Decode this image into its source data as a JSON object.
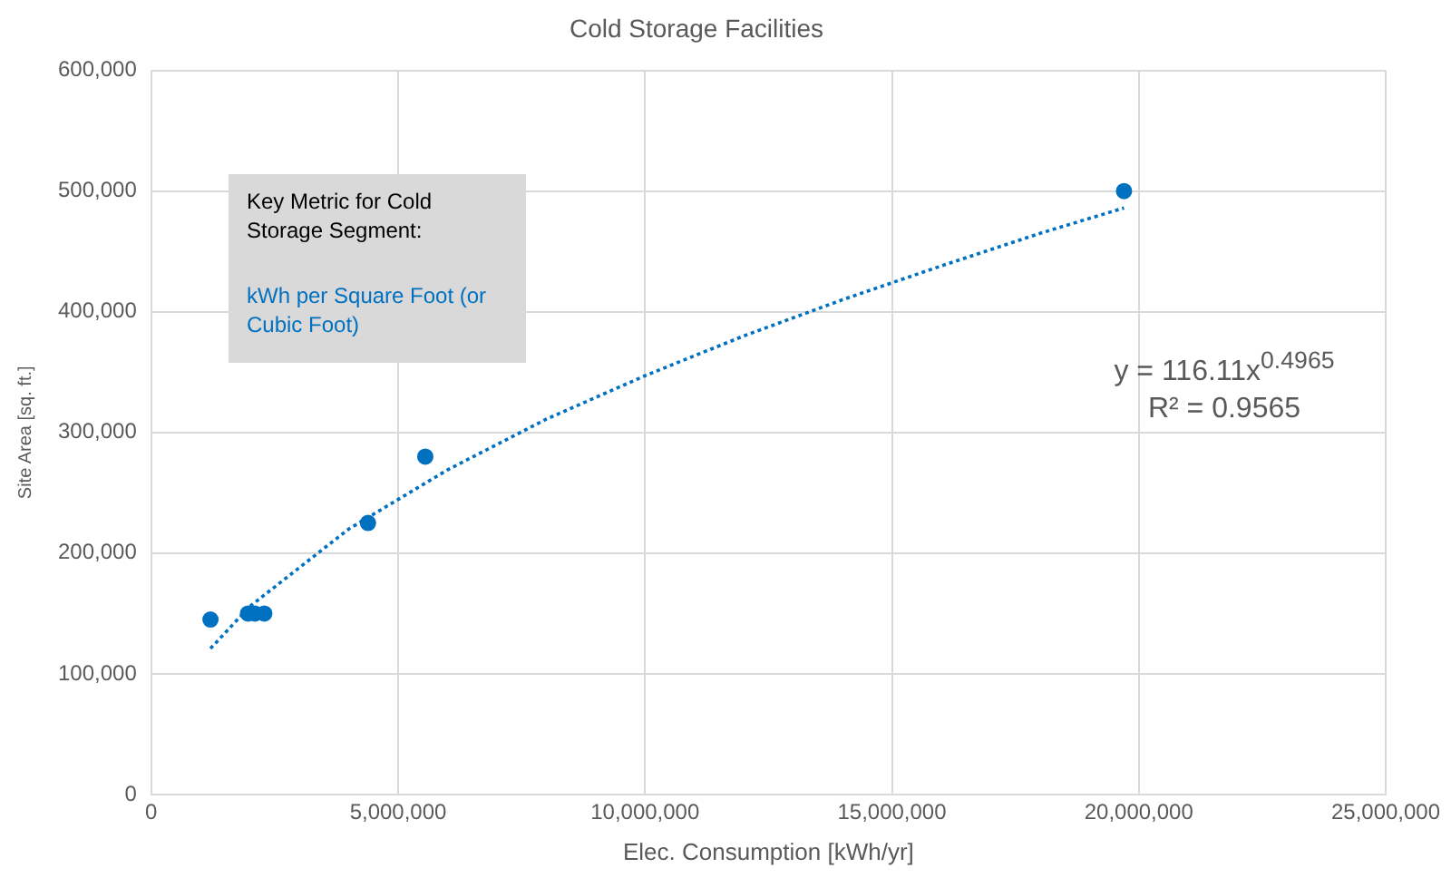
{
  "chart_data": {
    "type": "scatter",
    "title": "Cold Storage Facilities",
    "xlabel": "Elec. Consumption [kWh/yr]",
    "ylabel": "Site Area [sq. ft.]",
    "xlim": [
      0,
      25000000
    ],
    "xticks": [
      0,
      {
        "value": 5000000,
        "label": "5,000,000"
      },
      {
        "value": 10000000,
        "label": "10,000,000"
      },
      {
        "value": 15000000,
        "label": "15,000,000"
      },
      {
        "value": 20000000,
        "label": "20,000,000"
      },
      {
        "value": 25000000,
        "label": "25,000,000"
      }
    ],
    "ylim": [
      0,
      600000
    ],
    "yticks": [
      0,
      {
        "value": 100000,
        "label": "100,000"
      },
      {
        "value": 200000,
        "label": "200,000"
      },
      {
        "value": 300000,
        "label": "300,000"
      },
      {
        "value": 400000,
        "label": "400,000"
      },
      {
        "value": 500000,
        "label": "500,000"
      },
      {
        "value": 600000,
        "label": "600,000"
      }
    ],
    "grid": true,
    "legend": false,
    "marker": "circle",
    "series": [
      {
        "color": "#0070c0",
        "x": [
          1200000,
          1960000,
          2100000,
          2290000,
          4390000,
          5550000,
          19700000
        ],
        "values": [
          145000,
          150000,
          150000,
          150000,
          225000,
          280000,
          500000
        ]
      },
      {
        "type": "line",
        "color": "#0070c0",
        "marker": "none",
        "line_style": "dotted",
        "x": [
          1200000,
          2000000,
          4000000,
          6000000,
          8000000,
          10000000,
          12000000,
          14000000,
          16000000,
          18000000,
          19700000
        ],
        "values": [
          121000,
          156000,
          220000,
          269000,
          311000,
          347000,
          380000,
          410000,
          438000,
          465000,
          486000
        ]
      }
    ],
    "annotations": [
      "Key Metric for  Cold Storage Segment:",
      "kWh per Square Foot (or Cubic Foot)",
      "y = 116.11x$^{0.4965}$",
      "R² = 0.9565"
    ]
  }
}
